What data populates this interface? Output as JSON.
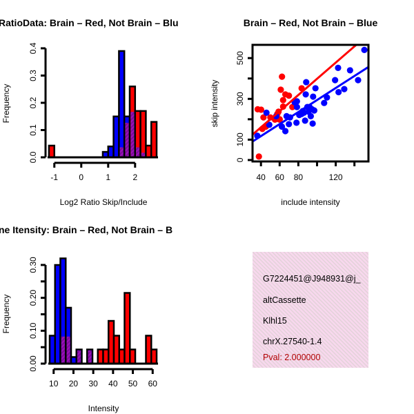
{
  "colors": {
    "red": "#FF0000",
    "blue": "#0000FF",
    "overlap": "#9A10B8",
    "panel_bg": "#F8D8EE",
    "pval": "#B00000"
  },
  "chart_data": [
    {
      "type": "bar",
      "subtype": "overlaid-histogram",
      "title": "RatioData: Brain – Red, Not Brain – Blu",
      "xlabel": "Log2 Ratio Skip/Include",
      "ylabel": "Frequency",
      "xlim": [
        -1.25,
        2.8
      ],
      "ylim": [
        0,
        0.4
      ],
      "xticks": [
        -1,
        0,
        1,
        2
      ],
      "xtick_labels": [
        "-1",
        "0",
        "1",
        "2"
      ],
      "yticks": [
        0,
        0.1,
        0.2,
        0.3,
        0.4
      ],
      "ytick_labels": [
        "0.0",
        "0.1",
        "0.2",
        "0.3",
        "0.4"
      ],
      "bin_start": -1.2,
      "bin_width": 0.2,
      "series": [
        {
          "name": "Not Brain",
          "color": "blue",
          "values": [
            0,
            0,
            0,
            0,
            0,
            0,
            0,
            0,
            0,
            0,
            0.02,
            0.04,
            0.15,
            0.39,
            0.15,
            0.17,
            0.04,
            0.02,
            0,
            0
          ]
        },
        {
          "name": "Brain",
          "color": "red",
          "values": [
            0.043,
            0,
            0,
            0,
            0,
            0,
            0,
            0,
            0,
            0,
            0,
            0,
            0,
            0.04,
            0.13,
            0.26,
            0.17,
            0.17,
            0.043,
            0.13
          ]
        }
      ]
    },
    {
      "type": "scatter",
      "title": "Brain – Red, Not Brain – Blue",
      "xlabel": "include intensity",
      "ylabel": "skip intensity",
      "xlim": [
        31,
        155
      ],
      "ylim": [
        -7,
        565
      ],
      "xticks": [
        40,
        60,
        80,
        100,
        120,
        140
      ],
      "xtick_labels": [
        "40",
        "60",
        "80",
        "",
        "120",
        ""
      ],
      "yticks": [
        0,
        100,
        200,
        300,
        400,
        500
      ],
      "ytick_labels": [
        "0",
        "100",
        "",
        "300",
        "",
        "500"
      ],
      "series": [
        {
          "name": "Brain",
          "color": "red",
          "fit": {
            "slope": 3.97,
            "intercept": 1.5
          },
          "points": [
            [
              36.5,
              249
            ],
            [
              40.2,
              247
            ],
            [
              37.8,
              17
            ],
            [
              42.7,
              209
            ],
            [
              41.5,
              153
            ],
            [
              45.2,
              164
            ],
            [
              50.1,
              209
            ],
            [
              55,
              198
            ],
            [
              57.5,
              226
            ],
            [
              58.8,
              237
            ],
            [
              60,
              198
            ],
            [
              62.5,
              409
            ],
            [
              61.2,
              345
            ],
            [
              63.7,
              294
            ],
            [
              63.7,
              262
            ],
            [
              66.1,
              322
            ],
            [
              69.9,
              316
            ],
            [
              73.6,
              260
            ],
            [
              83.5,
              352
            ],
            [
              60,
              200
            ]
          ]
        },
        {
          "name": "Not Brain",
          "color": "blue",
          "fit": {
            "slope": 2.95,
            "intercept": -0.7
          },
          "points": [
            [
              36.1,
              119
            ],
            [
              45.9,
              232
            ],
            [
              48.9,
              173
            ],
            [
              56.3,
              215
            ],
            [
              62.4,
              164
            ],
            [
              66.1,
              142
            ],
            [
              67.4,
              215
            ],
            [
              69.9,
              176
            ],
            [
              71.1,
              209
            ],
            [
              76.1,
              283
            ],
            [
              78.5,
              288
            ],
            [
              78.5,
              260
            ],
            [
              78,
              183
            ],
            [
              81,
              221
            ],
            [
              83.5,
              226
            ],
            [
              85.9,
              232
            ],
            [
              87.2,
              193
            ],
            [
              88.4,
              382
            ],
            [
              87.9,
              322
            ],
            [
              89.6,
              260
            ],
            [
              90.9,
              237
            ],
            [
              93.3,
              215
            ],
            [
              94.6,
              249
            ],
            [
              95.3,
              179
            ],
            [
              95.8,
              311
            ],
            [
              97,
              243
            ],
            [
              98.3,
              352
            ],
            [
              107.6,
              280
            ],
            [
              110.6,
              307
            ],
            [
              119.3,
              392
            ],
            [
              122.5,
              452
            ],
            [
              123,
              333
            ],
            [
              129.1,
              348
            ],
            [
              135.3,
              440
            ],
            [
              143.9,
              392
            ],
            [
              150.6,
              540
            ],
            [
              92,
              260
            ],
            [
              84.7,
              240
            ]
          ]
        }
      ]
    },
    {
      "type": "bar",
      "subtype": "overlaid-histogram",
      "title": "ne Itensity: Brain – Red, Not Brain – B",
      "xlabel": "Intensity",
      "ylabel": "Frequency",
      "xlim": [
        8,
        62
      ],
      "ylim": [
        0,
        0.3
      ],
      "xticks": [
        10,
        20,
        30,
        40,
        50,
        60
      ],
      "xtick_labels": [
        "10",
        "20",
        "30",
        "40",
        "50",
        "60"
      ],
      "yticks": [
        0,
        0.05,
        0.1,
        0.15,
        0.2,
        0.25,
        0.3
      ],
      "ytick_labels": [
        "0.00",
        "",
        "0.10",
        "",
        "0.20",
        "",
        "0.30"
      ],
      "bin_start": 8,
      "bin_width": 2.7,
      "series": [
        {
          "name": "Not Brain",
          "color": "blue",
          "values": [
            0.085,
            0.3,
            0.32,
            0.17,
            0.02,
            0.043,
            0,
            0.043,
            0,
            0,
            0,
            0,
            0,
            0,
            0,
            0,
            0,
            0,
            0,
            0
          ]
        },
        {
          "name": "Brain",
          "color": "red",
          "values": [
            0,
            0,
            0.085,
            0.085,
            0,
            0.043,
            0,
            0.043,
            0,
            0.043,
            0.043,
            0.13,
            0.085,
            0.043,
            0.215,
            0.043,
            0,
            0,
            0.085,
            0.043
          ]
        }
      ]
    }
  ],
  "info_panel": {
    "id": "G7224451@J948931@j_",
    "event_type": "altCassette",
    "gene": "Klhl15",
    "location": "chrX.27540-1.4",
    "pval": "Pval: 2.000000"
  }
}
